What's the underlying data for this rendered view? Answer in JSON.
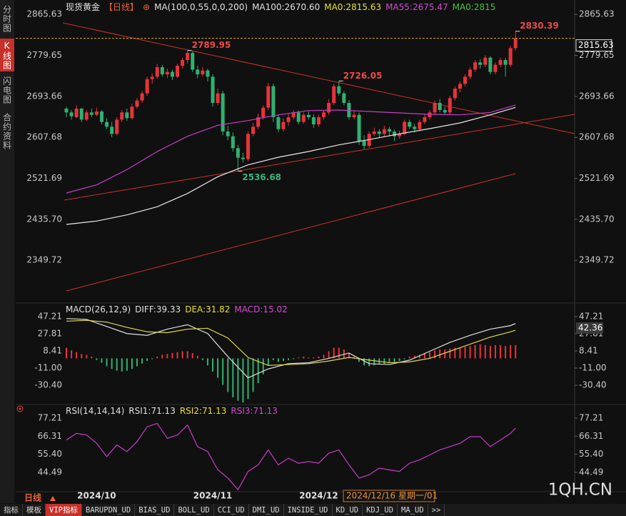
{
  "tabs": [
    "分时图",
    "K线图",
    "闪电图",
    "合约资料"
  ],
  "period": "日线",
  "cursor_date": "2024/12/16 星期一/01",
  "watermark": "1QH.CN",
  "toolbar": [
    "指标",
    "模板",
    "VIP指标",
    "BARUPDN_UD",
    "BIAS_UD",
    "BOLL_UD",
    "CCI_UD",
    "DMI_UD",
    "INSIDE_UD",
    "KD_UD",
    "KDJ_UD",
    "MA_UD",
    ">>"
  ],
  "chart_data": [
    {
      "type": "candlestick",
      "header": [
        {
          "text": "现货黄金",
          "color": "#e0e0e0"
        },
        {
          "text": "【日线】",
          "color": "#e8623a"
        },
        {
          "text": "⊕",
          "color": "#e8623a"
        },
        {
          "text": "MA(100,0,55,0,0,200)",
          "color": "#e0e0e0"
        },
        {
          "text": "MA100:2670.60",
          "color": "#e0e0e0"
        },
        {
          "text": "MA0:2815.63",
          "color": "#e6e02e"
        },
        {
          "text": "MA55:2675.47",
          "color": "#d24bd2"
        },
        {
          "text": "MA0:2815",
          "color": "#3ec43e"
        }
      ],
      "categories": [
        null,
        null,
        null,
        null,
        null,
        null,
        "2024/10",
        null,
        null,
        null,
        null,
        null,
        null,
        null,
        null,
        null,
        null,
        null,
        null,
        null,
        null,
        null,
        null,
        null,
        null,
        null,
        null,
        null,
        null,
        "2024/11",
        null,
        null,
        null,
        null,
        null,
        null,
        null,
        null,
        null,
        null,
        null,
        null,
        null,
        null,
        null,
        null,
        null,
        null,
        null,
        null,
        "2024/12",
        null,
        null,
        null,
        null,
        null,
        null,
        null,
        null,
        null,
        null,
        null,
        null,
        null,
        null,
        null,
        null,
        null,
        null,
        null,
        null,
        null,
        null,
        null,
        null,
        null,
        null,
        null,
        null,
        null,
        null,
        null,
        null,
        null,
        null,
        null,
        null,
        null,
        null,
        null
      ],
      "open": [
        2668,
        2660,
        2650,
        2668,
        2645,
        2660,
        2655,
        2662,
        2640,
        2630,
        2615,
        2645,
        2660,
        2648,
        2672,
        2685,
        2700,
        2730,
        2735,
        2755,
        2740,
        2745,
        2735,
        2758,
        2770,
        2785,
        2750,
        2740,
        2748,
        2735,
        2680,
        2700,
        2620,
        2610,
        2585,
        2565,
        2562,
        2615,
        2630,
        2650,
        2670,
        2715,
        2650,
        2625,
        2640,
        2650,
        2660,
        2640,
        2655,
        2650,
        2635,
        2650,
        2660,
        2680,
        2715,
        2700,
        2680,
        2650,
        2655,
        2600,
        2590,
        2615,
        2620,
        2615,
        2625,
        2620,
        2610,
        2615,
        2640,
        2630,
        2625,
        2640,
        2650,
        2660,
        2680,
        2665,
        2660,
        2690,
        2710,
        2720,
        2735,
        2750,
        2765,
        2760,
        2775,
        2745,
        2760,
        2770,
        2760,
        2795
      ],
      "high": [
        2672,
        2665,
        2675,
        2670,
        2665,
        2668,
        2670,
        2665,
        2648,
        2640,
        2650,
        2665,
        2668,
        2678,
        2690,
        2705,
        2735,
        2742,
        2762,
        2760,
        2752,
        2750,
        2762,
        2775,
        2789.95,
        2788,
        2758,
        2755,
        2752,
        2740,
        2710,
        2705,
        2632,
        2618,
        2592,
        2575,
        2620,
        2638,
        2658,
        2675,
        2722,
        2720,
        2655,
        2648,
        2658,
        2665,
        2664,
        2660,
        2662,
        2656,
        2655,
        2665,
        2688,
        2720,
        2726.05,
        2705,
        2686,
        2662,
        2660,
        2612,
        2620,
        2628,
        2625,
        2632,
        2630,
        2624,
        2622,
        2645,
        2645,
        2636,
        2645,
        2655,
        2665,
        2685,
        2688,
        2672,
        2695,
        2715,
        2725,
        2740,
        2755,
        2770,
        2772,
        2780,
        2778,
        2765,
        2775,
        2774,
        2800,
        2830.39
      ],
      "low": [
        2650,
        2645,
        2648,
        2640,
        2642,
        2650,
        2652,
        2635,
        2625,
        2608,
        2612,
        2640,
        2642,
        2645,
        2668,
        2680,
        2695,
        2720,
        2730,
        2735,
        2732,
        2728,
        2732,
        2752,
        2762,
        2745,
        2732,
        2735,
        2725,
        2672,
        2675,
        2612,
        2602,
        2578,
        2536.68,
        2555,
        2558,
        2610,
        2625,
        2645,
        2665,
        2640,
        2618,
        2620,
        2632,
        2645,
        2635,
        2636,
        2645,
        2628,
        2630,
        2645,
        2655,
        2675,
        2695,
        2675,
        2645,
        2645,
        2592,
        2583,
        2586,
        2610,
        2608,
        2610,
        2612,
        2600,
        2605,
        2612,
        2625,
        2618,
        2620,
        2636,
        2645,
        2655,
        2660,
        2655,
        2656,
        2685,
        2702,
        2715,
        2730,
        2745,
        2752,
        2755,
        2740,
        2740,
        2755,
        2735,
        2755,
        2790
      ],
      "close": [
        2660,
        2652,
        2668,
        2645,
        2660,
        2655,
        2662,
        2640,
        2630,
        2615,
        2645,
        2660,
        2648,
        2672,
        2685,
        2700,
        2730,
        2735,
        2755,
        2740,
        2745,
        2735,
        2758,
        2770,
        2785,
        2750,
        2740,
        2748,
        2735,
        2680,
        2700,
        2620,
        2610,
        2585,
        2565,
        2562,
        2615,
        2630,
        2650,
        2670,
        2715,
        2650,
        2625,
        2640,
        2650,
        2660,
        2640,
        2655,
        2650,
        2635,
        2650,
        2660,
        2680,
        2715,
        2700,
        2680,
        2650,
        2655,
        2600,
        2590,
        2615,
        2620,
        2615,
        2625,
        2620,
        2610,
        2615,
        2640,
        2630,
        2625,
        2640,
        2650,
        2660,
        2680,
        2665,
        2660,
        2690,
        2710,
        2720,
        2735,
        2750,
        2765,
        2760,
        2775,
        2745,
        2760,
        2770,
        2760,
        2795,
        2815.63
      ],
      "up_color": "#e8333b",
      "down_color": "#2fb170",
      "series": [
        {
          "color": "#e8e8e8",
          "x": [
            0,
            6,
            12,
            18,
            24,
            30,
            36,
            42,
            48,
            54,
            60,
            66,
            72,
            78,
            84,
            89
          ],
          "values": [
            2425,
            2432,
            2445,
            2462,
            2490,
            2525,
            2550,
            2566,
            2578,
            2592,
            2603,
            2615,
            2626,
            2638,
            2655,
            2670.6
          ]
        },
        {
          "color": "#c83cc8",
          "x": [
            0,
            6,
            12,
            18,
            24,
            30,
            36,
            42,
            48,
            54,
            60,
            66,
            72,
            78,
            84,
            89
          ],
          "values": [
            2491,
            2508,
            2540,
            2578,
            2610,
            2633,
            2643,
            2655,
            2664,
            2665,
            2662,
            2659,
            2656,
            2655,
            2660,
            2675.47
          ]
        }
      ],
      "annotations": [
        {
          "value": 2789.95
        },
        {
          "value": 2536.68
        },
        {
          "value": 2726.05
        },
        {
          "value": 2830.39
        }
      ],
      "ylim": [
        2266,
        2884
      ],
      "yticks": [
        2865.63,
        2779.65,
        2693.66,
        2607.68,
        2521.69,
        {
          "value": 2435.7,
          "label": "2435.70"
        },
        2349.72
      ]
    },
    {
      "type": "macd",
      "header": [
        {
          "text": "MACD(26,12,9)",
          "color": "#e0e0e0"
        },
        {
          "text": "DIFF:39.33",
          "color": "#e0e0e0"
        },
        {
          "text": "DEA:31.82",
          "color": "#e6e02e"
        },
        {
          "text": "MACD:15.02",
          "color": "#d24bd2"
        }
      ],
      "histogram": {
        "up_color": "#e8333b",
        "down_color": "#2fb170",
        "values": [
          12,
          9,
          7,
          5,
          4,
          2,
          -2,
          -5,
          -9,
          -12,
          -14,
          -15,
          -14,
          -12,
          -9,
          -6,
          -3,
          -1,
          2,
          4,
          5,
          6,
          7,
          8,
          8,
          6,
          3,
          -2,
          -8,
          -15,
          -22,
          -30,
          -38,
          -44,
          -48,
          -50,
          -46,
          -38,
          -28,
          -18,
          -8,
          -2,
          -4,
          -3,
          -2,
          -1,
          1,
          2,
          1,
          1,
          2,
          4,
          8,
          12,
          12,
          10,
          6,
          2,
          -4,
          -8,
          -9,
          -8,
          -7,
          -6,
          -5,
          -4,
          -3,
          -1,
          2,
          3,
          4,
          6,
          7,
          9,
          10,
          10,
          11,
          12,
          12,
          13,
          14,
          15,
          16,
          15,
          14,
          15,
          15,
          14,
          15,
          15.02
        ]
      },
      "series": [
        {
          "color": "#e0e0e0",
          "x": [
            0,
            4,
            8,
            12,
            16,
            20,
            24,
            28,
            32,
            36,
            40,
            44,
            48,
            52,
            56,
            60,
            64,
            68,
            72,
            76,
            80,
            84,
            88,
            89
          ],
          "values": [
            45,
            44,
            36,
            28,
            26,
            33,
            38,
            28,
            2,
            -22,
            -12,
            -6,
            -5,
            0,
            6,
            -6,
            -7,
            -2,
            8,
            18,
            26,
            33,
            37,
            39.33
          ]
        },
        {
          "color": "#e0d84a",
          "x": [
            0,
            4,
            8,
            12,
            16,
            20,
            24,
            28,
            32,
            36,
            40,
            44,
            48,
            52,
            56,
            60,
            64,
            68,
            72,
            76,
            80,
            84,
            88,
            89
          ],
          "values": [
            42,
            43,
            41,
            35,
            30,
            29,
            33,
            34,
            23,
            1,
            -8,
            -7,
            -6,
            -3,
            1,
            -2,
            -5,
            -4,
            0,
            8,
            16,
            24,
            30,
            31.82
          ]
        }
      ],
      "marker_value": 42.36,
      "ylim": [
        -51.4,
        57.7
      ],
      "yticks": [
        47.21,
        27.81,
        8.41,
        {
          "value": -11,
          "label": "-11.00"
        },
        {
          "value": -30.4,
          "label": "-30.40"
        }
      ]
    },
    {
      "type": "line",
      "header": [
        {
          "text": "RSI(14,14,14)",
          "color": "#e0e0e0"
        },
        {
          "text": "RSI1:71.13",
          "color": "#e0e0e0"
        },
        {
          "text": "RSI2:71.13",
          "color": "#e6e02e"
        },
        {
          "text": "RSI3:71.13",
          "color": "#d24bd2"
        }
      ],
      "series": [
        {
          "color": "#c83cc8",
          "x": [
            0,
            2,
            4,
            6,
            8,
            10,
            12,
            14,
            16,
            18,
            20,
            22,
            24,
            26,
            28,
            30,
            32,
            34,
            36,
            38,
            40,
            42,
            44,
            46,
            48,
            50,
            52,
            54,
            56,
            58,
            60,
            62,
            64,
            66,
            68,
            70,
            72,
            74,
            76,
            78,
            80,
            82,
            84,
            86,
            88,
            89
          ],
          "values": [
            64,
            68,
            67,
            62,
            54,
            61,
            57,
            63,
            72,
            74,
            65,
            67,
            73,
            60,
            57,
            46,
            41,
            34,
            45,
            49,
            58,
            49,
            53,
            50,
            51,
            50,
            56,
            58,
            49,
            41,
            43,
            47,
            46,
            45,
            50,
            52,
            55,
            58,
            60,
            62,
            66,
            66,
            60,
            64,
            68,
            71.13
          ]
        }
      ],
      "ylim": [
        31.07,
        83.68
      ],
      "yticks": [
        77.21,
        66.31,
        {
          "value": 55.4,
          "label": "55.40"
        },
        44.49
      ]
    }
  ]
}
